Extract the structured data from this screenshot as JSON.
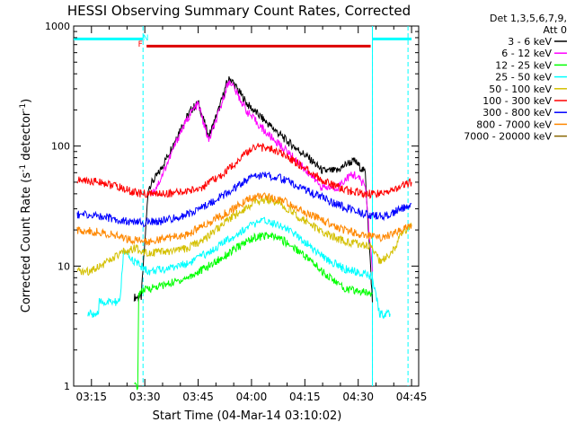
{
  "chart_data": {
    "type": "line",
    "title": "HESSI Observing Summary Count Rates, Corrected",
    "xlabel": "Start Time (04-Mar-14 03:10:02)",
    "ylabel_main": "Corrected Count Rate (s",
    "ylabel_sup1": "-1",
    "ylabel_mid": " detector",
    "ylabel_sup2": "-1",
    "ylabel_end": ")",
    "y_scale": "log",
    "ylim": [
      1,
      1000
    ],
    "xlim_minutes": [
      0,
      97
    ],
    "y_ticks": [
      {
        "value": 1,
        "label": "1"
      },
      {
        "value": 10,
        "label": "10"
      },
      {
        "value": 100,
        "label": "100"
      },
      {
        "value": 1000,
        "label": "1000"
      }
    ],
    "x_ticks": [
      {
        "minute": 5,
        "label": "03:15"
      },
      {
        "minute": 20,
        "label": "03:30"
      },
      {
        "minute": 35,
        "label": "03:45"
      },
      {
        "minute": 50,
        "label": "04:00"
      },
      {
        "minute": 65,
        "label": "04:15"
      },
      {
        "minute": 80,
        "label": "04:30"
      },
      {
        "minute": 95,
        "label": "04:45"
      }
    ],
    "legend": {
      "header_line1": "Det 1,3,5,6,7,9,",
      "header_line2": "Att 0",
      "placement": "right, outside plot"
    },
    "night_boundaries_minutes": [
      19.5,
      84
    ],
    "saa_end_minute": 94,
    "markers": [
      {
        "label": "F",
        "minute": 19,
        "color": "#ff0000"
      },
      {
        "label": "N",
        "minute": 20.5,
        "color": "#00ffff"
      }
    ],
    "flare_bar": {
      "start_minute": 20.5,
      "end_minute": 83.5,
      "value": 680,
      "color": "#dd0000"
    },
    "night_bars": [
      {
        "start_minute": 0,
        "end_minute": 19.5,
        "value": 780,
        "color": "#00ffff"
      },
      {
        "start_minute": 84,
        "end_minute": 95,
        "value": 780,
        "color": "#00ffff"
      }
    ],
    "series": [
      {
        "name": "3 - 6 keV",
        "color": "#000000",
        "points": [
          [
            17,
            5.5
          ],
          [
            19,
            5.5
          ],
          [
            21,
            45
          ],
          [
            24,
            60
          ],
          [
            27,
            90
          ],
          [
            30,
            140
          ],
          [
            33,
            200
          ],
          [
            35,
            230
          ],
          [
            38,
            120
          ],
          [
            41,
            210
          ],
          [
            43,
            330
          ],
          [
            44,
            370
          ],
          [
            46,
            300
          ],
          [
            49,
            220
          ],
          [
            54,
            160
          ],
          [
            60,
            110
          ],
          [
            66,
            80
          ],
          [
            70,
            62
          ],
          [
            74,
            62
          ],
          [
            77,
            72
          ],
          [
            79,
            75
          ],
          [
            82,
            60
          ],
          [
            84,
            5
          ]
        ]
      },
      {
        "name": "6 - 12 keV",
        "color": "#ff00ff",
        "points": [
          [
            22,
            40
          ],
          [
            24,
            50
          ],
          [
            27,
            80
          ],
          [
            30,
            130
          ],
          [
            33,
            190
          ],
          [
            35,
            225
          ],
          [
            38,
            110
          ],
          [
            41,
            195
          ],
          [
            43,
            310
          ],
          [
            44,
            350
          ],
          [
            46,
            270
          ],
          [
            49,
            190
          ],
          [
            54,
            130
          ],
          [
            60,
            90
          ],
          [
            66,
            60
          ],
          [
            70,
            45
          ],
          [
            74,
            45
          ],
          [
            77,
            55
          ],
          [
            79,
            58
          ],
          [
            82,
            47
          ],
          [
            84,
            9
          ]
        ]
      },
      {
        "name": "12 - 25 keV",
        "color": "#00ff00",
        "points": [
          [
            17,
            1
          ],
          [
            18,
            1
          ],
          [
            18.3,
            6
          ],
          [
            21,
            6.5
          ],
          [
            26,
            7
          ],
          [
            32,
            8
          ],
          [
            38,
            10
          ],
          [
            44,
            13
          ],
          [
            50,
            17
          ],
          [
            54,
            18
          ],
          [
            58,
            17
          ],
          [
            64,
            13
          ],
          [
            70,
            9
          ],
          [
            76,
            6.5
          ],
          [
            82,
            6
          ],
          [
            84,
            6
          ]
        ]
      },
      {
        "name": "25 - 50 keV",
        "color": "#00ffff",
        "points": [
          [
            4,
            4
          ],
          [
            7,
            4
          ],
          [
            7.2,
            5
          ],
          [
            12,
            5
          ],
          [
            13,
            5
          ],
          [
            14,
            13
          ],
          [
            17,
            11
          ],
          [
            21,
            9
          ],
          [
            26,
            9.5
          ],
          [
            32,
            10.5
          ],
          [
            38,
            13
          ],
          [
            44,
            17
          ],
          [
            50,
            22
          ],
          [
            54,
            24
          ],
          [
            58,
            22
          ],
          [
            64,
            17
          ],
          [
            70,
            12
          ],
          [
            76,
            9.5
          ],
          [
            82,
            8.5
          ],
          [
            84,
            8
          ],
          [
            86,
            4
          ],
          [
            89,
            4
          ]
        ]
      },
      {
        "name": "50 - 100 keV",
        "color": "#d4c000",
        "points": [
          [
            1,
            9
          ],
          [
            4,
            9
          ],
          [
            7,
            10
          ],
          [
            10,
            11
          ],
          [
            14,
            13
          ],
          [
            17,
            14
          ],
          [
            21,
            13
          ],
          [
            26,
            13
          ],
          [
            32,
            14
          ],
          [
            38,
            18
          ],
          [
            44,
            25
          ],
          [
            50,
            33
          ],
          [
            54,
            36
          ],
          [
            58,
            33
          ],
          [
            64,
            25
          ],
          [
            70,
            19
          ],
          [
            76,
            16
          ],
          [
            82,
            15
          ],
          [
            84,
            14
          ],
          [
            86,
            11
          ],
          [
            89,
            12
          ],
          [
            92,
            18
          ],
          [
            95,
            22
          ]
        ]
      },
      {
        "name": "100 - 300 keV",
        "color": "#ff0000",
        "points": [
          [
            1,
            52
          ],
          [
            8,
            50
          ],
          [
            13,
            45
          ],
          [
            16,
            42
          ],
          [
            19,
            40
          ],
          [
            24,
            40
          ],
          [
            30,
            41
          ],
          [
            36,
            45
          ],
          [
            42,
            58
          ],
          [
            47,
            80
          ],
          [
            51,
            100
          ],
          [
            55,
            95
          ],
          [
            60,
            82
          ],
          [
            65,
            65
          ],
          [
            70,
            52
          ],
          [
            76,
            43
          ],
          [
            82,
            40
          ],
          [
            86,
            40
          ],
          [
            89,
            42
          ],
          [
            92,
            46
          ],
          [
            95,
            50
          ]
        ]
      },
      {
        "name": "300 - 800 keV",
        "color": "#0000ff",
        "points": [
          [
            1,
            27
          ],
          [
            8,
            26
          ],
          [
            13,
            24
          ],
          [
            17,
            23
          ],
          [
            20,
            23
          ],
          [
            26,
            24
          ],
          [
            32,
            27
          ],
          [
            38,
            33
          ],
          [
            44,
            42
          ],
          [
            49,
            53
          ],
          [
            53,
            58
          ],
          [
            58,
            54
          ],
          [
            64,
            45
          ],
          [
            70,
            37
          ],
          [
            76,
            31
          ],
          [
            82,
            27
          ],
          [
            86,
            26
          ],
          [
            89,
            27
          ],
          [
            92,
            30
          ],
          [
            95,
            33
          ]
        ]
      },
      {
        "name": "800 - 7000 keV",
        "color": "#ff8800",
        "points": [
          [
            1,
            20
          ],
          [
            8,
            19
          ],
          [
            13,
            17.5
          ],
          [
            17,
            16.5
          ],
          [
            20,
            16
          ],
          [
            26,
            17
          ],
          [
            32,
            18.5
          ],
          [
            38,
            23
          ],
          [
            44,
            29
          ],
          [
            49,
            36
          ],
          [
            53,
            39
          ],
          [
            58,
            36
          ],
          [
            64,
            29
          ],
          [
            70,
            24
          ],
          [
            76,
            20
          ],
          [
            82,
            18
          ],
          [
            86,
            17
          ],
          [
            89,
            18
          ],
          [
            92,
            20
          ],
          [
            95,
            22
          ]
        ]
      },
      {
        "name": "7000 - 20000 keV",
        "color": "#886600",
        "points": []
      }
    ]
  }
}
